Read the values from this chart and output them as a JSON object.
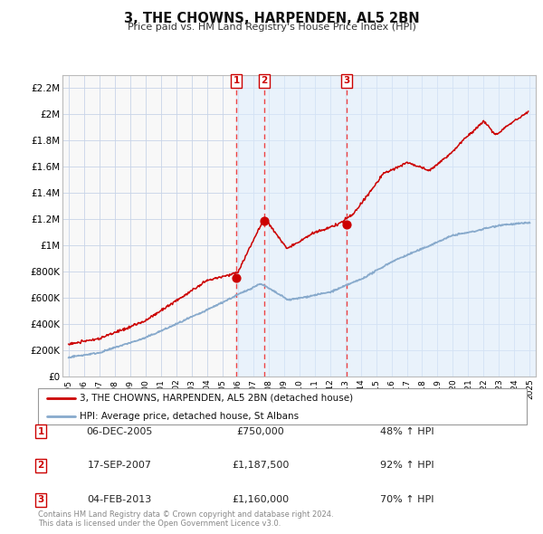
{
  "title": "3, THE CHOWNS, HARPENDEN, AL5 2BN",
  "subtitle": "Price paid vs. HM Land Registry's House Price Index (HPI)",
  "background_color": "#ffffff",
  "plot_bg_color": "#f8f8f8",
  "grid_color": "#c8d4e8",
  "red_line_color": "#cc0000",
  "blue_line_color": "#88aacc",
  "dashed_line_color": "#ee4444",
  "shade_color": "#ddeeff",
  "ylim": [
    0,
    2300000
  ],
  "yticks": [
    0,
    200000,
    400000,
    600000,
    800000,
    1000000,
    1200000,
    1400000,
    1600000,
    1800000,
    2000000,
    2200000
  ],
  "ytick_labels": [
    "£0",
    "£200K",
    "£400K",
    "£600K",
    "£800K",
    "£1M",
    "£1.2M",
    "£1.4M",
    "£1.6M",
    "£1.8M",
    "£2M",
    "£2.2M"
  ],
  "xtick_years": [
    1995,
    1996,
    1997,
    1998,
    1999,
    2000,
    2001,
    2002,
    2003,
    2004,
    2005,
    2006,
    2007,
    2008,
    2009,
    2010,
    2011,
    2012,
    2013,
    2014,
    2015,
    2016,
    2017,
    2018,
    2019,
    2020,
    2021,
    2022,
    2023,
    2024,
    2025
  ],
  "sale1_x": 2005.92,
  "sale1_y": 750000,
  "sale2_x": 2007.71,
  "sale2_y": 1187500,
  "sale3_x": 2013.08,
  "sale3_y": 1160000,
  "legend_line1": "3, THE CHOWNS, HARPENDEN, AL5 2BN (detached house)",
  "legend_line2": "HPI: Average price, detached house, St Albans",
  "table_data": [
    {
      "num": "1",
      "date": "06-DEC-2005",
      "price": "£750,000",
      "hpi": "48% ↑ HPI"
    },
    {
      "num": "2",
      "date": "17-SEP-2007",
      "price": "£1,187,500",
      "hpi": "92% ↑ HPI"
    },
    {
      "num": "3",
      "date": "04-FEB-2013",
      "price": "£1,160,000",
      "hpi": "70% ↑ HPI"
    }
  ],
  "footer": "Contains HM Land Registry data © Crown copyright and database right 2024.\nThis data is licensed under the Open Government Licence v3.0."
}
